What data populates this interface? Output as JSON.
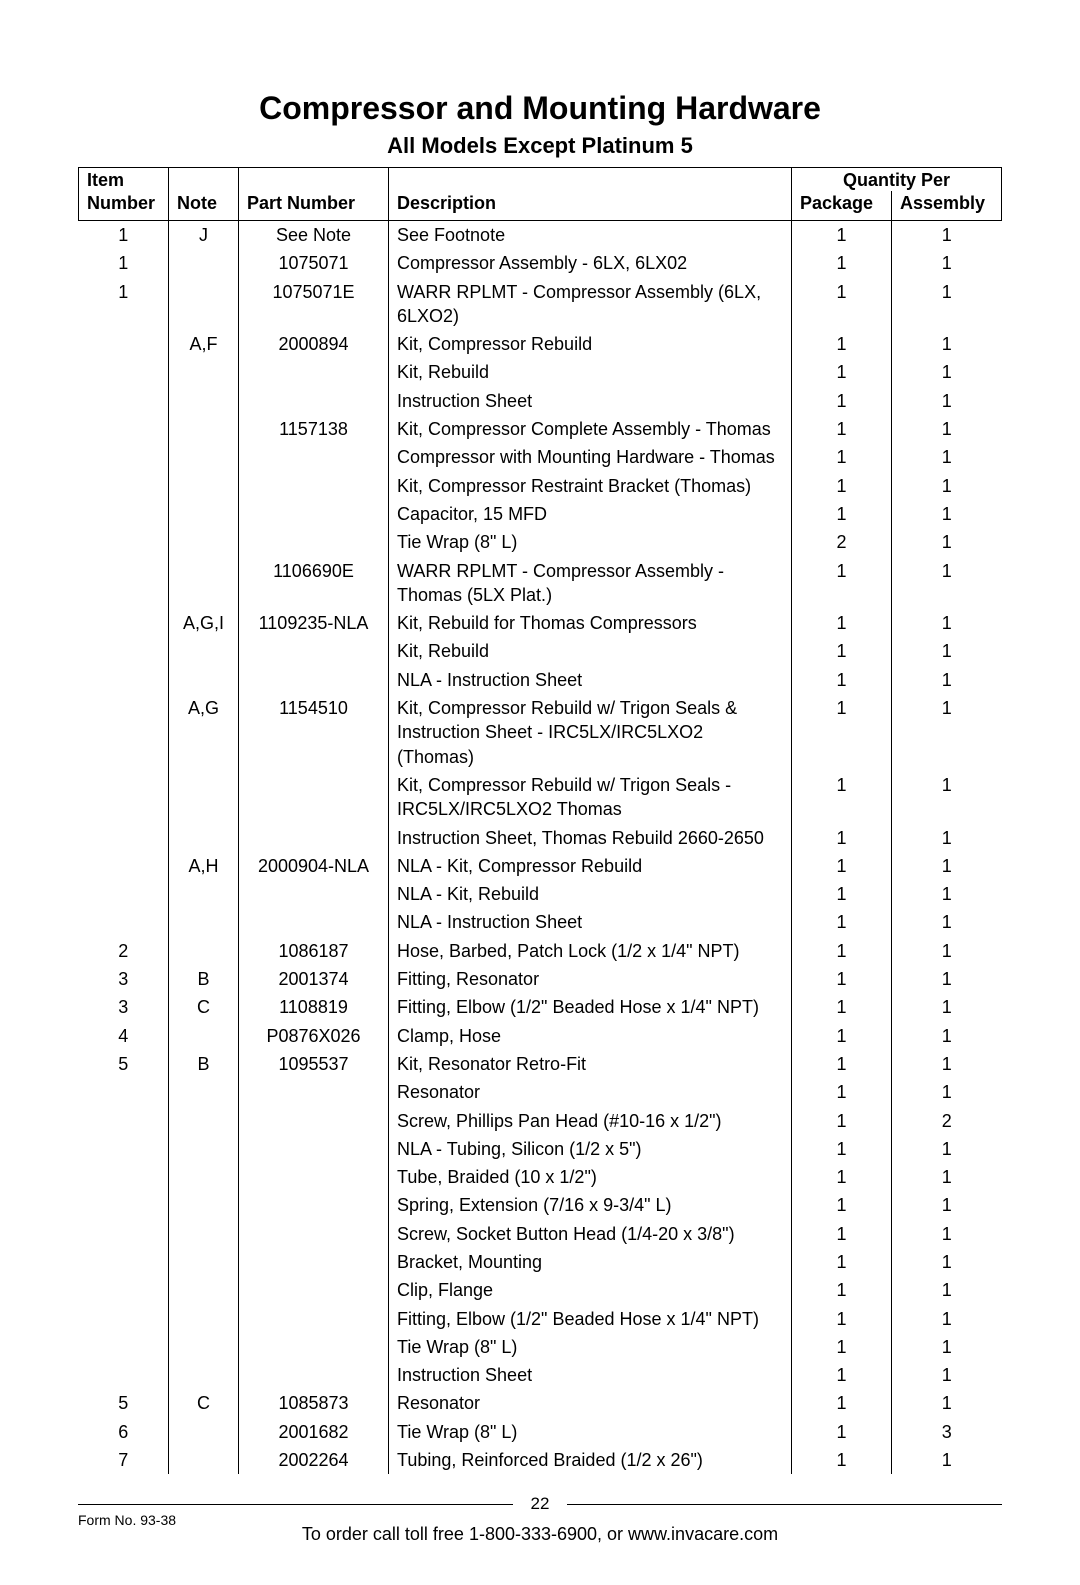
{
  "title": "Compressor and Mounting Hardware",
  "subtitle": "All Models Except Platinum 5",
  "headers": {
    "item_top": "Item",
    "item": "Number",
    "note": "Note",
    "part": "Part Number",
    "desc": "Description",
    "qty_top": "Quantity Per",
    "pkg": "Package",
    "asm": "Assembly"
  },
  "rows": [
    {
      "item": "1",
      "note": "J",
      "part": "See Note",
      "desc": "See Footnote",
      "pkg": "1",
      "asm": "1"
    },
    {
      "item": "1",
      "note": "",
      "part": "1075071",
      "desc": "Compressor Assembly - 6LX, 6LX02",
      "pkg": "1",
      "asm": "1"
    },
    {
      "item": "1",
      "note": "",
      "part": "1075071E",
      "desc": "WARR RPLMT - Compressor Assembly (6LX, 6LXO2)",
      "pkg": "1",
      "asm": "1"
    },
    {
      "item": "",
      "note": "A,F",
      "part": "2000894",
      "desc": "Kit, Compressor Rebuild",
      "pkg": "1",
      "asm": "1"
    },
    {
      "item": "",
      "note": "",
      "part": "",
      "desc": "Kit, Rebuild",
      "pkg": "1",
      "asm": "1"
    },
    {
      "item": "",
      "note": "",
      "part": "",
      "desc": "Instruction Sheet",
      "pkg": "1",
      "asm": "1"
    },
    {
      "item": "",
      "note": "",
      "part": "1157138",
      "desc": "Kit, Compressor Complete Assembly - Thomas",
      "pkg": "1",
      "asm": "1"
    },
    {
      "item": "",
      "note": "",
      "part": "",
      "desc": "Compressor with Mounting Hardware - Thomas",
      "pkg": "1",
      "asm": "1"
    },
    {
      "item": "",
      "note": "",
      "part": "",
      "desc": "Kit, Compressor Restraint Bracket (Thomas)",
      "pkg": "1",
      "asm": "1"
    },
    {
      "item": "",
      "note": "",
      "part": "",
      "desc": "Capacitor, 15 MFD",
      "pkg": "1",
      "asm": "1"
    },
    {
      "item": "",
      "note": "",
      "part": "",
      "desc": "Tie Wrap (8\" L)",
      "pkg": "2",
      "asm": "1"
    },
    {
      "item": "",
      "note": "",
      "part": "1106690E",
      "desc": "WARR RPLMT - Compressor Assembly - Thomas (5LX Plat.)",
      "pkg": "1",
      "asm": "1"
    },
    {
      "item": "",
      "note": "A,G,I",
      "part": "1109235-NLA",
      "desc": "Kit, Rebuild for Thomas Compressors",
      "pkg": "1",
      "asm": "1"
    },
    {
      "item": "",
      "note": "",
      "part": "",
      "desc": "Kit, Rebuild",
      "pkg": "1",
      "asm": "1"
    },
    {
      "item": "",
      "note": "",
      "part": "",
      "desc": "NLA - Instruction Sheet",
      "pkg": "1",
      "asm": "1"
    },
    {
      "item": "",
      "note": "A,G",
      "part": "1154510",
      "desc": "Kit, Compressor Rebuild w/ Trigon Seals & Instruction Sheet - IRC5LX/IRC5LXO2 (Thomas)",
      "pkg": "1",
      "asm": "1"
    },
    {
      "item": "",
      "note": "",
      "part": "",
      "desc": "Kit, Compressor Rebuild w/ Trigon Seals - IRC5LX/IRC5LXO2 Thomas",
      "pkg": "1",
      "asm": "1"
    },
    {
      "item": "",
      "note": "",
      "part": "",
      "desc": "Instruction Sheet, Thomas Rebuild 2660-2650",
      "pkg": "1",
      "asm": "1"
    },
    {
      "item": "",
      "note": "A,H",
      "part": "2000904-NLA",
      "desc": "NLA - Kit, Compressor Rebuild",
      "pkg": "1",
      "asm": "1"
    },
    {
      "item": "",
      "note": "",
      "part": "",
      "desc": "NLA - Kit, Rebuild",
      "pkg": "1",
      "asm": "1"
    },
    {
      "item": "",
      "note": "",
      "part": "",
      "desc": "NLA - Instruction Sheet",
      "pkg": "1",
      "asm": "1"
    },
    {
      "item": "2",
      "note": "",
      "part": "1086187",
      "desc": "Hose, Barbed, Patch Lock (1/2 x 1/4\" NPT)",
      "pkg": "1",
      "asm": "1"
    },
    {
      "item": "3",
      "note": "B",
      "part": "2001374",
      "desc": "Fitting, Resonator",
      "pkg": "1",
      "asm": "1"
    },
    {
      "item": "3",
      "note": "C",
      "part": "1108819",
      "desc": "Fitting, Elbow (1/2\" Beaded Hose x 1/4\" NPT)",
      "pkg": "1",
      "asm": "1"
    },
    {
      "item": "4",
      "note": "",
      "part": "P0876X026",
      "desc": "Clamp, Hose",
      "pkg": "1",
      "asm": "1"
    },
    {
      "item": "5",
      "note": "B",
      "part": "1095537",
      "desc": "Kit, Resonator Retro-Fit",
      "pkg": "1",
      "asm": "1"
    },
    {
      "item": "",
      "note": "",
      "part": "",
      "desc": "Resonator",
      "pkg": "1",
      "asm": "1"
    },
    {
      "item": "",
      "note": "",
      "part": "",
      "desc": "Screw, Phillips Pan Head (#10-16 x 1/2\")",
      "pkg": "1",
      "asm": "2"
    },
    {
      "item": "",
      "note": "",
      "part": "",
      "desc": "NLA - Tubing, Silicon (1/2 x 5\")",
      "pkg": "1",
      "asm": "1"
    },
    {
      "item": "",
      "note": "",
      "part": "",
      "desc": "Tube, Braided (10 x 1/2\")",
      "pkg": "1",
      "asm": "1"
    },
    {
      "item": "",
      "note": "",
      "part": "",
      "desc": "Spring, Extension (7/16 x 9-3/4\" L)",
      "pkg": "1",
      "asm": "1"
    },
    {
      "item": "",
      "note": "",
      "part": "",
      "desc": "Screw, Socket Button Head (1/4-20 x 3/8\")",
      "pkg": "1",
      "asm": "1"
    },
    {
      "item": "",
      "note": "",
      "part": "",
      "desc": "Bracket, Mounting",
      "pkg": "1",
      "asm": "1"
    },
    {
      "item": "",
      "note": "",
      "part": "",
      "desc": "Clip, Flange",
      "pkg": "1",
      "asm": "1"
    },
    {
      "item": "",
      "note": "",
      "part": "",
      "desc": "Fitting, Elbow (1/2\" Beaded Hose x 1/4\" NPT)",
      "pkg": "1",
      "asm": "1"
    },
    {
      "item": "",
      "note": "",
      "part": "",
      "desc": "Tie Wrap (8\" L)",
      "pkg": "1",
      "asm": "1"
    },
    {
      "item": "",
      "note": "",
      "part": "",
      "desc": "Instruction Sheet",
      "pkg": "1",
      "asm": "1"
    },
    {
      "item": "5",
      "note": "C",
      "part": "1085873",
      "desc": "Resonator",
      "pkg": "1",
      "asm": "1"
    },
    {
      "item": "6",
      "note": "",
      "part": "2001682",
      "desc": "Tie Wrap (8\" L)",
      "pkg": "1",
      "asm": "3"
    },
    {
      "item": "7",
      "note": "",
      "part": "2002264",
      "desc": "Tubing, Reinforced Braided (1/2 x 26\")",
      "pkg": "1",
      "asm": "1"
    }
  ],
  "footer": {
    "page_number": "22",
    "form_no": "Form No. 93-38",
    "order_info": "To order call toll free 1-800-333-6900, or www.invacare.com"
  },
  "styling": {
    "background_color": "#ffffff",
    "text_color": "#000000",
    "border_color": "#000000",
    "title_fontsize": 32,
    "subtitle_fontsize": 22,
    "body_fontsize": 18,
    "footer_small_fontsize": 14
  }
}
